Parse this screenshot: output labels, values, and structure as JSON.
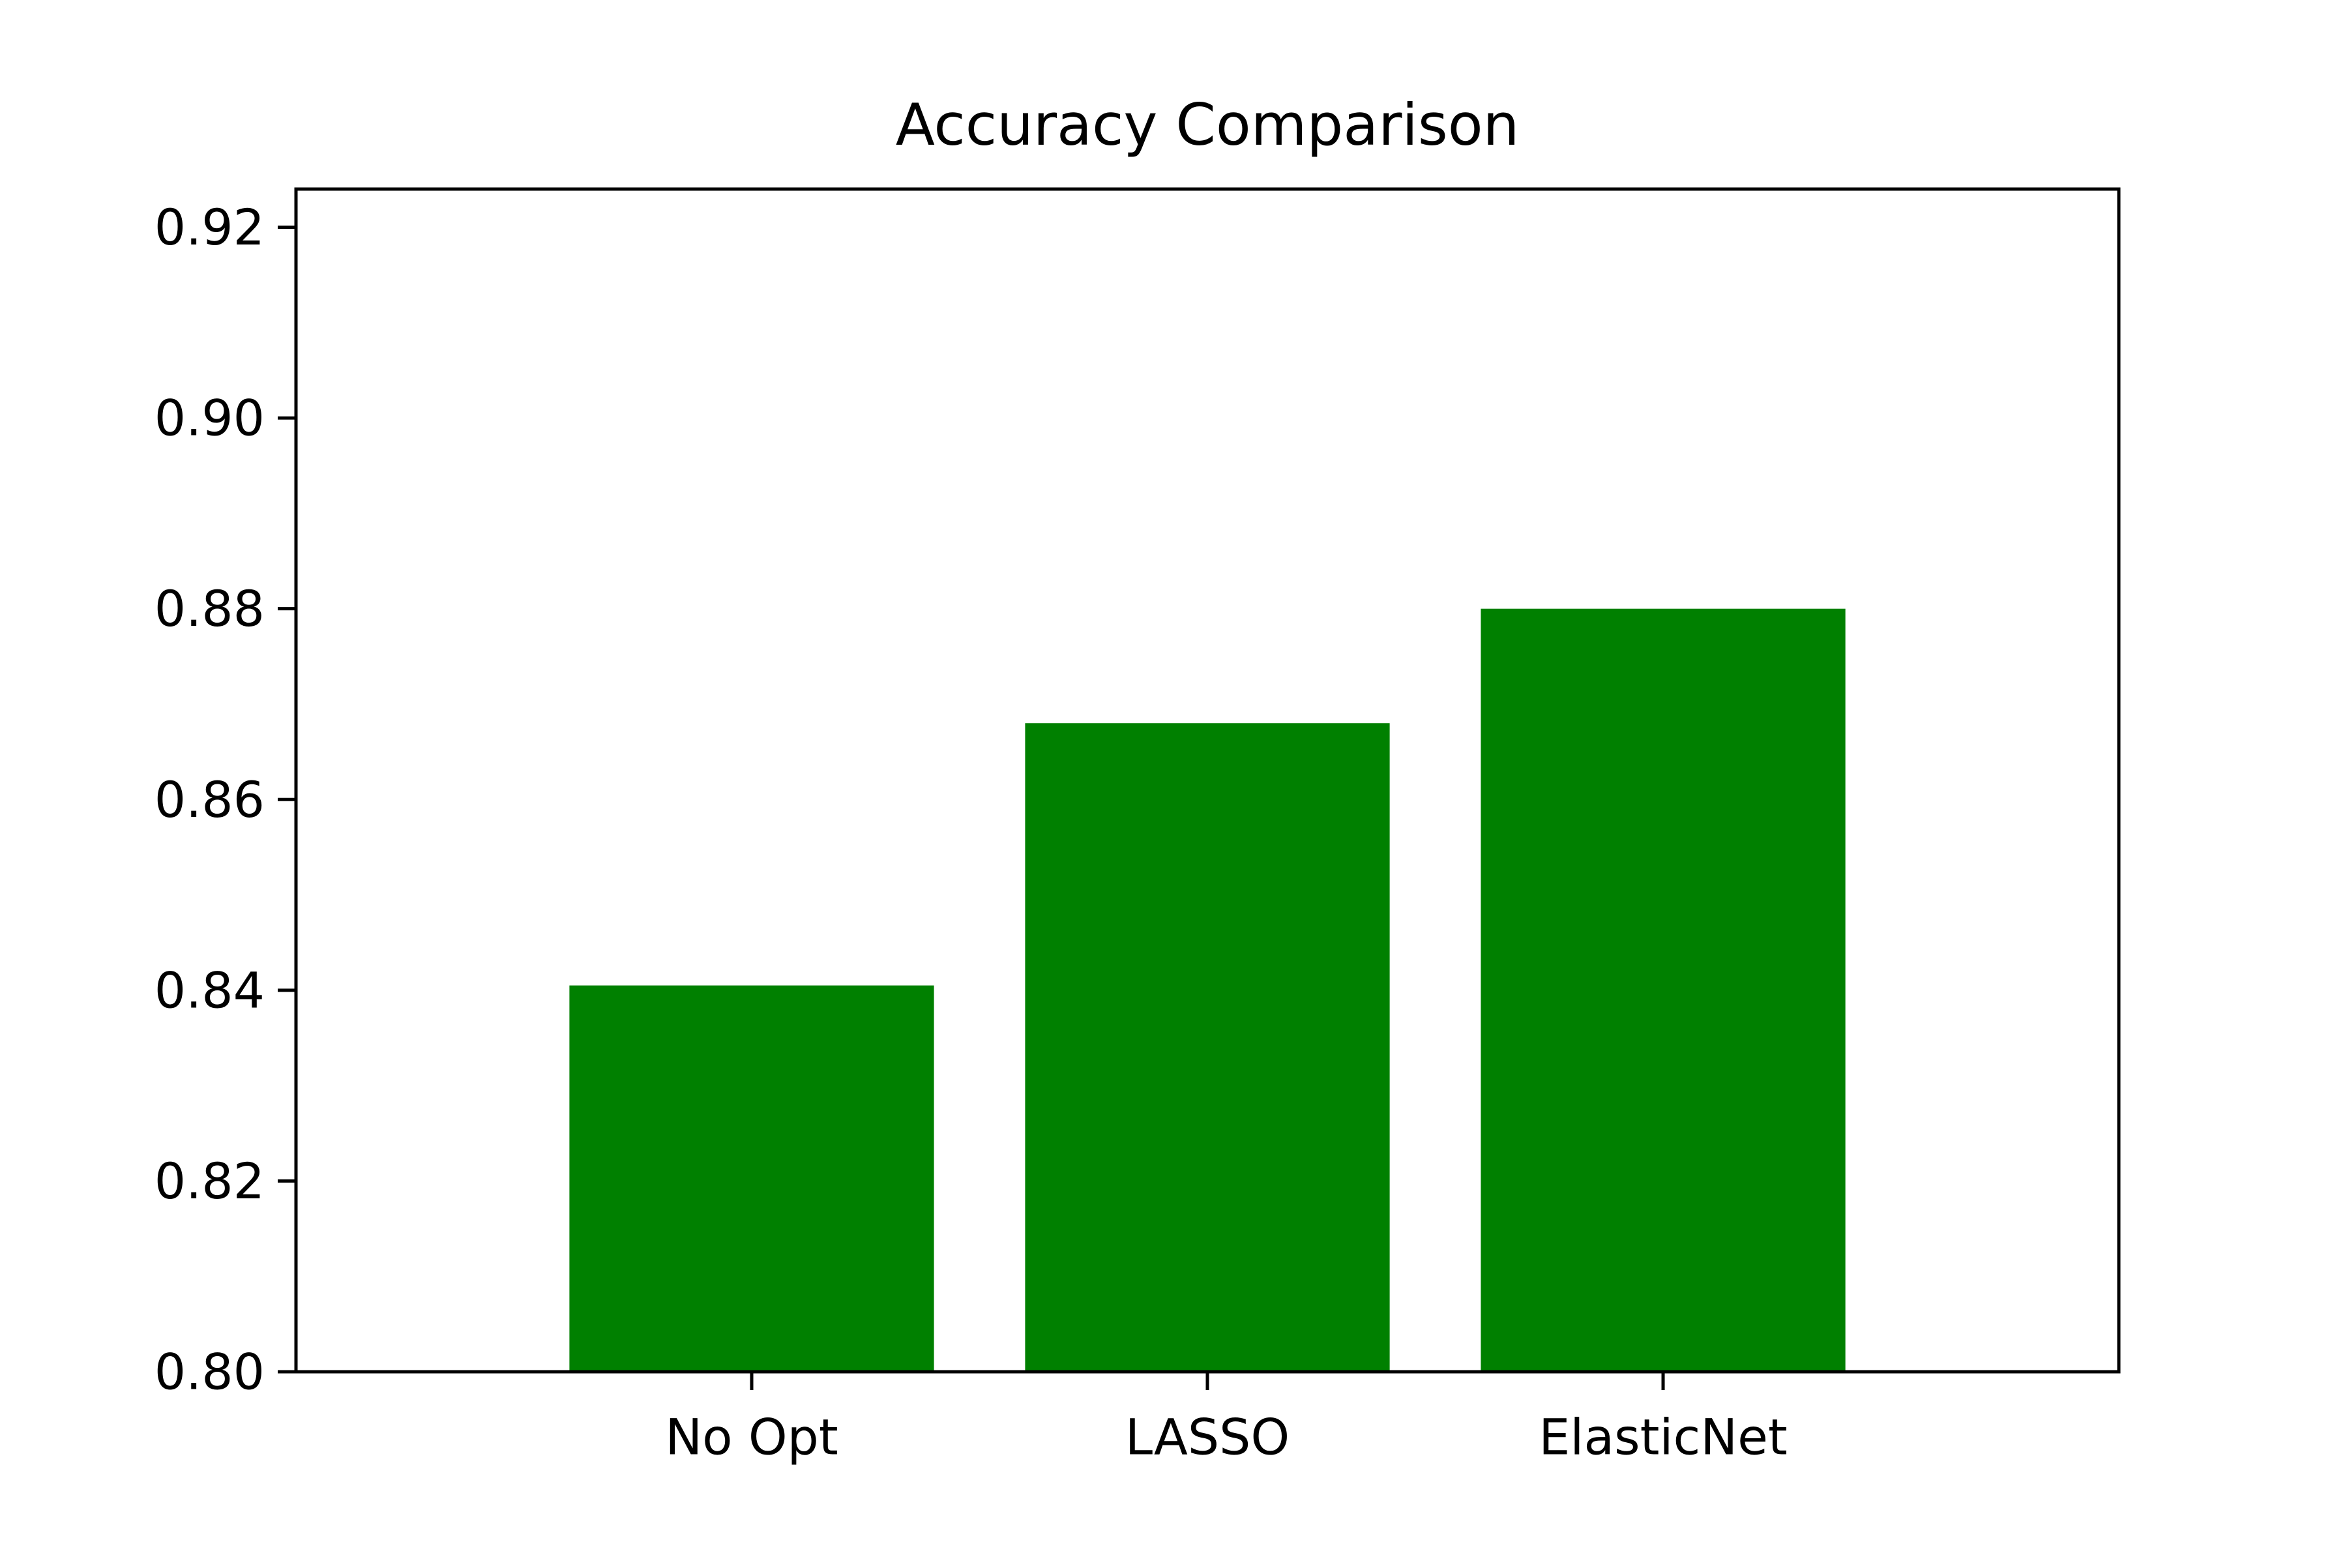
{
  "chart_data": {
    "type": "bar",
    "title": "Accuracy Comparison",
    "xlabel": "",
    "ylabel": "",
    "categories": [
      "No Opt",
      "LASSO",
      "ElasticNet"
    ],
    "values": [
      0.8405,
      0.868,
      0.88
    ],
    "ylim": [
      0.8,
      0.924
    ],
    "yticks": [
      "0.80",
      "0.82",
      "0.84",
      "0.86",
      "0.88",
      "0.90",
      "0.92"
    ],
    "xlim": [
      -1.0,
      3.0
    ],
    "bar_color": "#008000",
    "grid": false,
    "legend": "none"
  }
}
